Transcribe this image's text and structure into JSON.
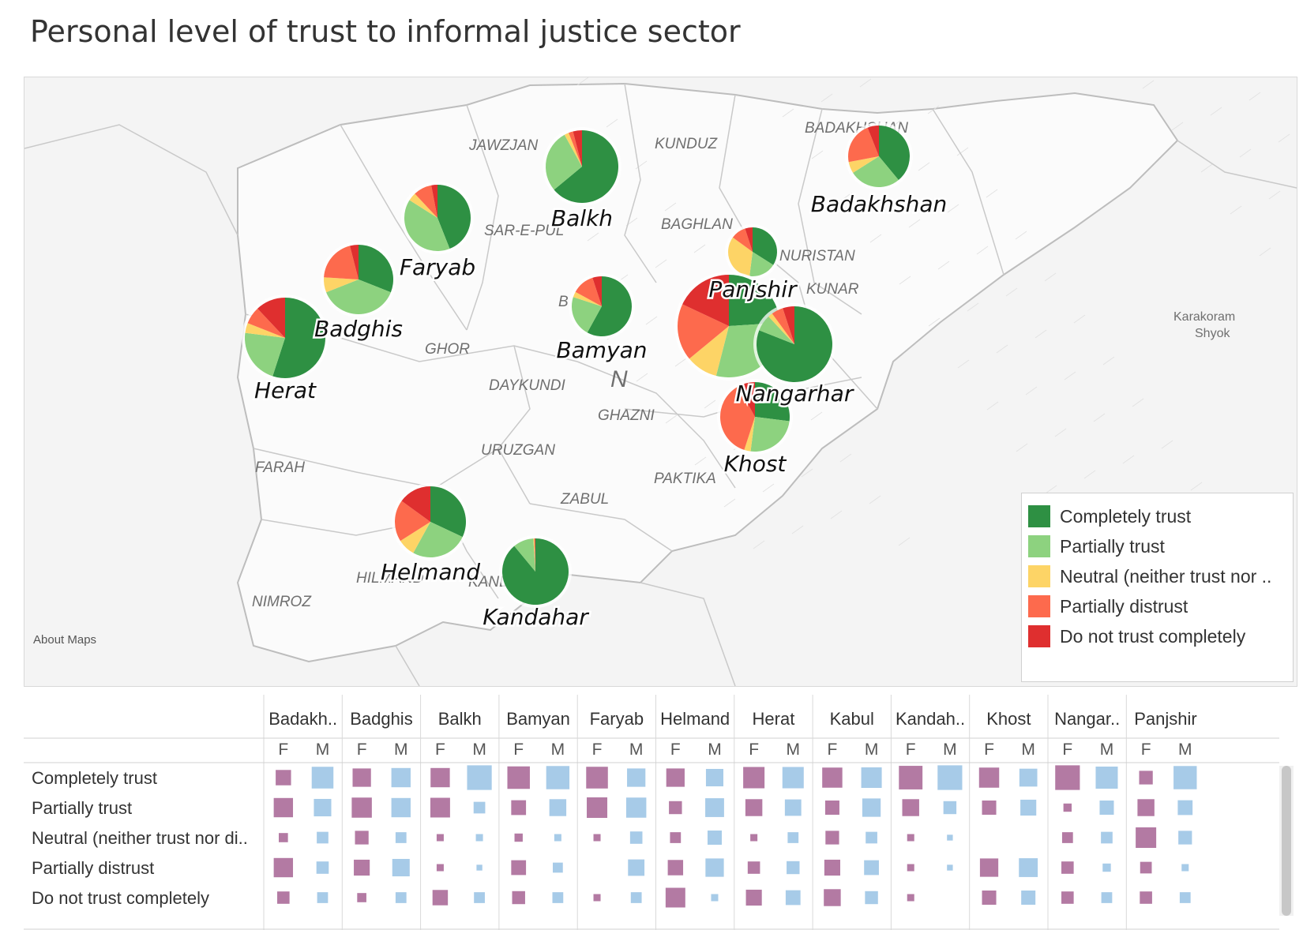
{
  "title": "Personal level of trust to informal justice sector",
  "attribution": "About Maps",
  "colors": {
    "Completely trust": "#2e9043",
    "Partially trust": "#8dd27f",
    "Neutral (neither trust nor distrust)": "#fdd466",
    "Partially distrust": "#fd6a4d",
    "Do not trust completely": "#df2f2f",
    "female": "#b37aa3",
    "male": "#a7cbe8"
  },
  "map_labels": [
    "JAWZJAN",
    "KUNDUZ",
    "BADAKHSHAN",
    "SAR-E-PUL",
    "BAGHLAN",
    "NURISTAN",
    "KUNAR",
    "GHOR",
    "B",
    "DAYKUNDI",
    "N",
    "GHAZNI",
    "URUZGAN",
    "FARAH",
    "PAKTIKA",
    "ZABUL",
    "HILMAND",
    "KANDAHAR",
    "NIMROZ",
    "Karakoram",
    "Shyok"
  ],
  "legend": {
    "items": [
      "Completely trust",
      "Partially trust",
      "Neutral (neither trust nor ..",
      "Partially distrust",
      "Do not trust completely"
    ]
  },
  "chart_data": [
    {
      "type": "pie",
      "title": "Personal level of trust to informal justice sector",
      "categories": [
        "Completely trust",
        "Partially trust",
        "Neutral (neither trust nor distrust)",
        "Partially distrust",
        "Do not trust completely"
      ],
      "provinces": [
        {
          "name": "Balkh",
          "values": [
            64,
            28,
            2,
            2,
            4
          ]
        },
        {
          "name": "Badakhshan",
          "values": [
            39,
            27,
            6,
            22,
            6
          ]
        },
        {
          "name": "Faryab",
          "values": [
            44,
            40,
            4,
            9,
            3
          ]
        },
        {
          "name": "Badghis",
          "values": [
            31,
            38,
            7,
            20,
            4
          ]
        },
        {
          "name": "Herat",
          "values": [
            55,
            22,
            4,
            7,
            12
          ]
        },
        {
          "name": "Bamyan",
          "values": [
            58,
            22,
            3,
            12,
            5
          ]
        },
        {
          "name": "Panjshir",
          "values": [
            34,
            18,
            33,
            10,
            5
          ]
        },
        {
          "name": "Kabul",
          "values": [
            24,
            30,
            10,
            18,
            18
          ]
        },
        {
          "name": "Nangarhar",
          "values": [
            81,
            7,
            2,
            5,
            5
          ]
        },
        {
          "name": "Khost",
          "values": [
            27,
            25,
            3,
            37,
            8
          ]
        },
        {
          "name": "Helmand",
          "values": [
            32,
            26,
            8,
            19,
            15
          ]
        },
        {
          "name": "Kandahar",
          "values": [
            89,
            10,
            0.5,
            0.3,
            0.2
          ]
        }
      ]
    },
    {
      "type": "table",
      "title": "Trust by province and gender",
      "columns": [
        "Badakh..",
        "Badghis",
        "Balkh",
        "Bamyan",
        "Faryab",
        "Helmand",
        "Herat",
        "Kabul",
        "Kandah..",
        "Khost",
        "Nangar..",
        "Panjshir"
      ],
      "genders": [
        "F",
        "M"
      ],
      "rows": [
        "Completely trust",
        "Partially trust",
        "Neutral (neither trust nor di..",
        "Partially distrust",
        "Do not trust completely"
      ],
      "values": [
        [
          [
            14,
            28
          ],
          [
            20,
            22
          ],
          [
            22,
            36
          ],
          [
            30,
            32
          ],
          [
            28,
            20
          ],
          [
            20,
            18
          ],
          [
            27,
            27
          ],
          [
            24,
            25
          ],
          [
            33,
            36
          ],
          [
            24,
            19
          ],
          [
            36,
            29
          ],
          [
            11,
            32
          ]
        ],
        [
          [
            22,
            18
          ],
          [
            24,
            22
          ],
          [
            23,
            8
          ],
          [
            13,
            17
          ],
          [
            25,
            24
          ],
          [
            10,
            21
          ],
          [
            17,
            16
          ],
          [
            12,
            20
          ],
          [
            17,
            10
          ],
          [
            12,
            15
          ],
          [
            4,
            12
          ],
          [
            17,
            13
          ]
        ],
        [
          [
            5,
            8
          ],
          [
            11,
            7
          ],
          [
            3,
            3
          ],
          [
            4,
            3
          ],
          [
            3,
            9
          ],
          [
            7,
            12
          ],
          [
            3,
            7
          ],
          [
            11,
            8
          ],
          [
            3,
            2
          ],
          [
            0,
            0
          ],
          [
            7,
            8
          ],
          [
            25,
            11
          ]
        ],
        [
          [
            22,
            9
          ],
          [
            15,
            18
          ],
          [
            3,
            2
          ],
          [
            13,
            6
          ],
          [
            0,
            16
          ],
          [
            14,
            20
          ],
          [
            9,
            10
          ],
          [
            15,
            13
          ],
          [
            3,
            2
          ],
          [
            20,
            21
          ],
          [
            9,
            4
          ],
          [
            8,
            3
          ]
        ],
        [
          [
            9,
            7
          ],
          [
            5,
            7
          ],
          [
            14,
            7
          ],
          [
            10,
            7
          ],
          [
            3,
            7
          ],
          [
            23,
            3
          ],
          [
            15,
            13
          ],
          [
            17,
            10
          ],
          [
            3,
            0
          ],
          [
            12,
            12
          ],
          [
            9,
            7
          ],
          [
            9,
            7
          ]
        ]
      ]
    }
  ]
}
